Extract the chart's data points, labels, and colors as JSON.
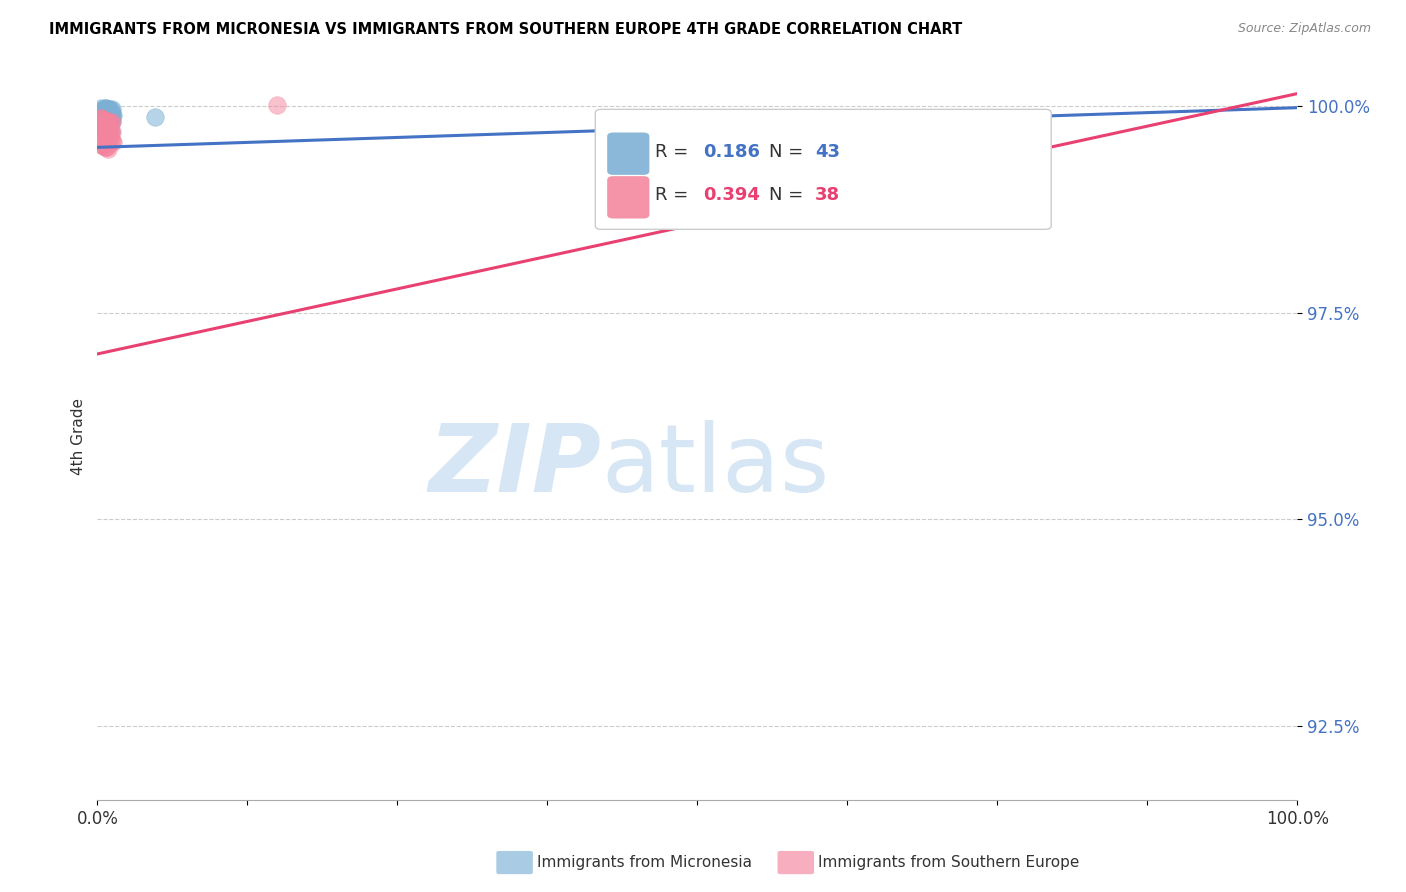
{
  "title": "IMMIGRANTS FROM MICRONESIA VS IMMIGRANTS FROM SOUTHERN EUROPE 4TH GRADE CORRELATION CHART",
  "source": "Source: ZipAtlas.com",
  "ylabel": "4th Grade",
  "xmin": 0.0,
  "xmax": 1.0,
  "ymin": 0.916,
  "ymax": 1.004,
  "yticks": [
    0.925,
    0.95,
    0.975,
    1.0
  ],
  "ytick_labels": [
    "92.5%",
    "95.0%",
    "97.5%",
    "100.0%"
  ],
  "legend_blue_R_val": "0.186",
  "legend_blue_N_val": "43",
  "legend_pink_R_val": "0.394",
  "legend_pink_N_val": "38",
  "blue_color": "#7BAFD4",
  "pink_color": "#F4849E",
  "blue_line_color": "#4472C4",
  "pink_line_color": "#E84070",
  "watermark_zip": "ZIP",
  "watermark_atlas": "atlas",
  "blue_scatter_x": [
    0.003,
    0.005,
    0.006,
    0.007,
    0.008,
    0.009,
    0.01,
    0.01,
    0.011,
    0.012,
    0.004,
    0.005,
    0.006,
    0.007,
    0.008,
    0.009,
    0.01,
    0.011,
    0.012,
    0.013,
    0.003,
    0.004,
    0.005,
    0.006,
    0.007,
    0.008,
    0.009,
    0.01,
    0.011,
    0.012,
    0.002,
    0.003,
    0.004,
    0.005,
    0.006,
    0.007,
    0.008,
    0.009,
    0.01,
    0.011,
    0.003,
    0.012,
    0.048
  ],
  "blue_scatter_y": [
    0.9998,
    0.9997,
    0.9998,
    0.9998,
    0.9997,
    0.9996,
    0.9997,
    0.9995,
    0.9995,
    0.9996,
    0.9994,
    0.9993,
    0.9993,
    0.9993,
    0.9991,
    0.9991,
    0.9993,
    0.999,
    0.999,
    0.9989,
    0.9988,
    0.9986,
    0.9986,
    0.9986,
    0.9985,
    0.9983,
    0.9983,
    0.9982,
    0.9983,
    0.9982,
    0.9977,
    0.9976,
    0.9975,
    0.9974,
    0.9973,
    0.9972,
    0.9971,
    0.997,
    0.9969,
    0.997,
    0.9985,
    0.9987,
    0.9987
  ],
  "pink_scatter_x": [
    0.003,
    0.004,
    0.005,
    0.006,
    0.007,
    0.008,
    0.009,
    0.01,
    0.011,
    0.012,
    0.003,
    0.004,
    0.005,
    0.006,
    0.007,
    0.008,
    0.009,
    0.01,
    0.011,
    0.012,
    0.004,
    0.005,
    0.006,
    0.007,
    0.008,
    0.009,
    0.01,
    0.011,
    0.012,
    0.013,
    0.004,
    0.005,
    0.006,
    0.007,
    0.008,
    0.009,
    0.003,
    0.15
  ],
  "pink_scatter_y": [
    0.9985,
    0.9984,
    0.9983,
    0.9983,
    0.9982,
    0.9982,
    0.9981,
    0.9981,
    0.998,
    0.9981,
    0.9976,
    0.9975,
    0.9975,
    0.9974,
    0.9973,
    0.9972,
    0.9971,
    0.997,
    0.9969,
    0.9969,
    0.9963,
    0.9963,
    0.9963,
    0.9962,
    0.9961,
    0.996,
    0.996,
    0.9959,
    0.9958,
    0.9956,
    0.9953,
    0.9952,
    0.9951,
    0.995,
    0.995,
    0.9948,
    0.9985,
    1.0001
  ],
  "blue_line_x0": 0.0,
  "blue_line_x1": 1.0,
  "blue_line_y0": 0.995,
  "blue_line_y1": 0.9998,
  "pink_line_x0": 0.0,
  "pink_line_x1": 1.0,
  "pink_line_y0": 0.97,
  "pink_line_y1": 1.0015,
  "background_color": "#ffffff",
  "grid_color": "#cccccc"
}
